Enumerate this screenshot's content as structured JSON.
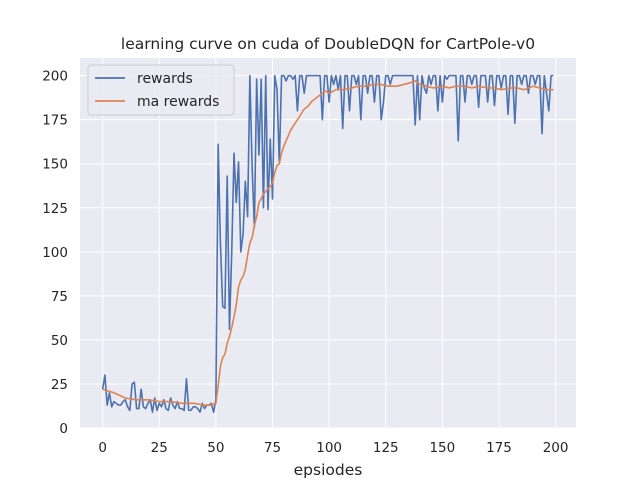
{
  "chart_data": {
    "type": "line",
    "title": "learning curve on cuda of DoubleDQN for CartPole-v0",
    "xlabel": "epsiodes",
    "ylabel": "",
    "xlim": [
      -10,
      209
    ],
    "ylim": [
      0,
      210
    ],
    "xticks": [
      0,
      25,
      50,
      75,
      100,
      125,
      150,
      175,
      200
    ],
    "yticks": [
      0,
      25,
      50,
      75,
      100,
      125,
      150,
      175,
      200
    ],
    "grid": true,
    "legend": "top-left",
    "series": [
      {
        "name": "rewards",
        "color": "#4c72b0",
        "x": [
          0,
          1,
          2,
          3,
          4,
          5,
          6,
          7,
          8,
          9,
          10,
          11,
          12,
          13,
          14,
          15,
          16,
          17,
          18,
          19,
          20,
          21,
          22,
          23,
          24,
          25,
          26,
          27,
          28,
          29,
          30,
          31,
          32,
          33,
          34,
          35,
          36,
          37,
          38,
          39,
          40,
          41,
          42,
          43,
          44,
          45,
          46,
          47,
          48,
          49,
          50,
          51,
          52,
          53,
          54,
          55,
          56,
          57,
          58,
          59,
          60,
          61,
          62,
          63,
          64,
          65,
          66,
          67,
          68,
          69,
          70,
          71,
          72,
          73,
          74,
          75,
          76,
          77,
          78,
          79,
          80,
          81,
          82,
          83,
          84,
          85,
          86,
          87,
          88,
          89,
          90,
          91,
          92,
          93,
          94,
          95,
          96,
          97,
          98,
          99,
          100,
          101,
          102,
          103,
          104,
          105,
          106,
          107,
          108,
          109,
          110,
          111,
          112,
          113,
          114,
          115,
          116,
          117,
          118,
          119,
          120,
          121,
          122,
          123,
          124,
          125,
          126,
          127,
          128,
          129,
          130,
          131,
          132,
          133,
          134,
          135,
          136,
          137,
          138,
          139,
          140,
          141,
          142,
          143,
          144,
          145,
          146,
          147,
          148,
          149,
          150,
          151,
          152,
          153,
          154,
          155,
          156,
          157,
          158,
          159,
          160,
          161,
          162,
          163,
          164,
          165,
          166,
          167,
          168,
          169,
          170,
          171,
          172,
          173,
          174,
          175,
          176,
          177,
          178,
          179,
          180,
          181,
          182,
          183,
          184,
          185,
          186,
          187,
          188,
          189,
          190,
          191,
          192,
          193,
          194,
          195,
          196,
          197,
          198,
          199
        ],
        "values": [
          22,
          30,
          13,
          20,
          12,
          15,
          14,
          13,
          13,
          15,
          16,
          12,
          10,
          25,
          26,
          11,
          11,
          22,
          12,
          11,
          14,
          16,
          9,
          17,
          10,
          14,
          12,
          16,
          11,
          10,
          17,
          13,
          11,
          15,
          11,
          11,
          10,
          28,
          10,
          10,
          12,
          12,
          11,
          9,
          14,
          11,
          13,
          13,
          14,
          9,
          16,
          161,
          105,
          69,
          68,
          143,
          56,
          100,
          156,
          128,
          151,
          100,
          110,
          140,
          120,
          200,
          148,
          114,
          198,
          155,
          198,
          125,
          200,
          124,
          164,
          130,
          200,
          192,
          150,
          200,
          200,
          197,
          200,
          200,
          198,
          200,
          180,
          200,
          200,
          190,
          200,
          200,
          200,
          200,
          200,
          200,
          200,
          175,
          200,
          200,
          185,
          200,
          195,
          200,
          192,
          200,
          170,
          200,
          200,
          180,
          200,
          200,
          195,
          200,
          175,
          200,
          200,
          190,
          200,
          200,
          185,
          200,
          200,
          175,
          185,
          200,
          200,
          195,
          200,
          200,
          200,
          200,
          200,
          200,
          200,
          200,
          200,
          200,
          172,
          200,
          175,
          200,
          193,
          190,
          200,
          195,
          200,
          200,
          180,
          200,
          185,
          200,
          198,
          200,
          200,
          200,
          200,
          163,
          200,
          200,
          185,
          200,
          200,
          195,
          200,
          200,
          182,
          200,
          200,
          200,
          185,
          200,
          200,
          183,
          200,
          200,
          193,
          200,
          200,
          178,
          200,
          200,
          173,
          200,
          200,
          195,
          200,
          200,
          190,
          200,
          200,
          195,
          200,
          200,
          167,
          200,
          190,
          180,
          200,
          200
        ]
      },
      {
        "name": "ma rewards",
        "color": "#dd8452",
        "x": [
          0,
          5,
          10,
          15,
          20,
          25,
          30,
          35,
          40,
          45,
          48,
          50,
          51,
          52,
          53,
          54,
          55,
          56,
          57,
          58,
          59,
          60,
          61,
          62,
          63,
          64,
          65,
          66,
          67,
          68,
          69,
          70,
          71,
          72,
          73,
          74,
          75,
          76,
          77,
          78,
          79,
          80,
          81,
          82,
          83,
          84,
          85,
          86,
          87,
          88,
          89,
          90,
          91,
          92,
          93,
          94,
          95,
          96,
          97,
          98,
          99,
          100,
          103,
          106,
          110,
          113,
          116,
          120,
          123,
          126,
          130,
          133,
          136,
          138,
          140,
          143,
          146,
          150,
          153,
          156,
          160,
          163,
          166,
          170,
          173,
          176,
          180,
          183,
          186,
          190,
          193,
          196,
          199
        ],
        "values": [
          22,
          20,
          17,
          16,
          16,
          15,
          15,
          14,
          14,
          13,
          13,
          14,
          24,
          35,
          40,
          42,
          48,
          52,
          57,
          63,
          70,
          80,
          84,
          86,
          90,
          98,
          105,
          108,
          115,
          120,
          128,
          130,
          133,
          134,
          136,
          137,
          139,
          145,
          149,
          150,
          156,
          160,
          163,
          166,
          169,
          171,
          173,
          175,
          177,
          179,
          181,
          182,
          183,
          185,
          186,
          187,
          188,
          189,
          190,
          191,
          191,
          190,
          192,
          192,
          193,
          194,
          194,
          195,
          195,
          194,
          194,
          195,
          196,
          197,
          195,
          194,
          193,
          194,
          193,
          194,
          194,
          193,
          194,
          193,
          193,
          192,
          193,
          193,
          192,
          194,
          193,
          192,
          192
        ]
      }
    ]
  }
}
